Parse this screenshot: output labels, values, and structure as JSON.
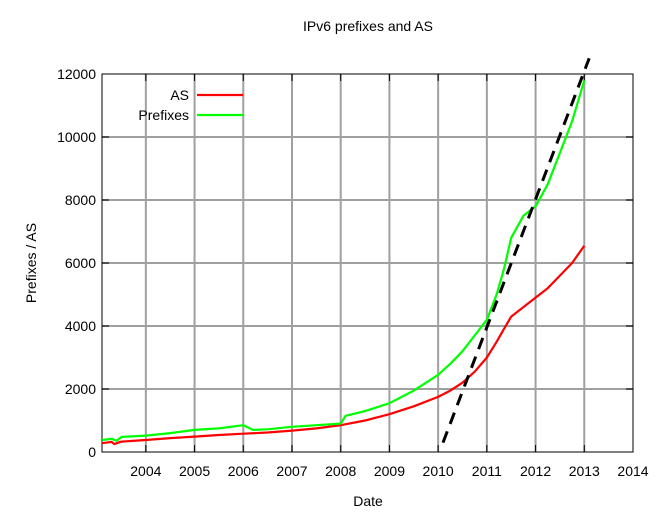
{
  "chart_data": {
    "type": "line",
    "title": "IPv6 prefixes and AS",
    "xlabel": "Date",
    "ylabel": "Prefixes / AS",
    "xlim": [
      2003.1,
      2014.0
    ],
    "ylim": [
      0,
      12000
    ],
    "x_ticks": [
      2004,
      2005,
      2006,
      2007,
      2008,
      2009,
      2010,
      2011,
      2012,
      2013,
      2014
    ],
    "x_tick_labels": [
      "2004",
      "2005",
      "2006",
      "2007",
      "2008",
      "2009",
      "2010",
      "2011",
      "2012",
      "2013",
      "2014"
    ],
    "y_ticks": [
      0,
      2000,
      4000,
      6000,
      8000,
      10000,
      12000
    ],
    "y_tick_labels": [
      "0",
      "2000",
      "4000",
      "6000",
      "8000",
      "10000",
      "12000"
    ],
    "grid": true,
    "legend_position": "top-left",
    "series": [
      {
        "name": "AS",
        "color": "#ff0000",
        "x": [
          2003.1,
          2003.3,
          2003.35,
          2003.5,
          2004.0,
          2004.5,
          2005.0,
          2005.5,
          2006.0,
          2006.5,
          2007.0,
          2007.5,
          2008.0,
          2008.5,
          2009.0,
          2009.5,
          2010.0,
          2010.25,
          2010.5,
          2010.75,
          2011.0,
          2011.2,
          2011.35,
          2011.5,
          2011.75,
          2012.0,
          2012.25,
          2012.5,
          2012.75,
          2013.0
        ],
        "values": [
          280,
          320,
          250,
          330,
          380,
          440,
          490,
          540,
          580,
          620,
          680,
          750,
          850,
          1000,
          1200,
          1450,
          1750,
          1950,
          2200,
          2550,
          3000,
          3500,
          3900,
          4300,
          4600,
          4900,
          5200,
          5600,
          6000,
          6550
        ]
      },
      {
        "name": "Prefixes",
        "color": "#00ff00",
        "x": [
          2003.1,
          2003.3,
          2003.4,
          2003.5,
          2004.0,
          2004.5,
          2005.0,
          2005.5,
          2006.0,
          2006.2,
          2006.5,
          2007.0,
          2007.5,
          2008.0,
          2008.1,
          2008.5,
          2009.0,
          2009.5,
          2010.0,
          2010.25,
          2010.5,
          2010.75,
          2011.0,
          2011.2,
          2011.35,
          2011.5,
          2011.75,
          2012.0,
          2012.25,
          2012.5,
          2012.75,
          2013.0
        ],
        "values": [
          380,
          420,
          360,
          480,
          520,
          600,
          700,
          750,
          850,
          700,
          720,
          800,
          850,
          900,
          1150,
          1300,
          1550,
          1950,
          2450,
          2800,
          3200,
          3700,
          4200,
          5000,
          5800,
          6800,
          7500,
          7800,
          8500,
          9500,
          10500,
          11800
        ]
      }
    ],
    "annotations": [
      {
        "type": "dashed-trend-line",
        "color": "#000000",
        "x": [
          2010.1,
          2013.1
        ],
        "values": [
          300,
          12500
        ]
      }
    ]
  }
}
